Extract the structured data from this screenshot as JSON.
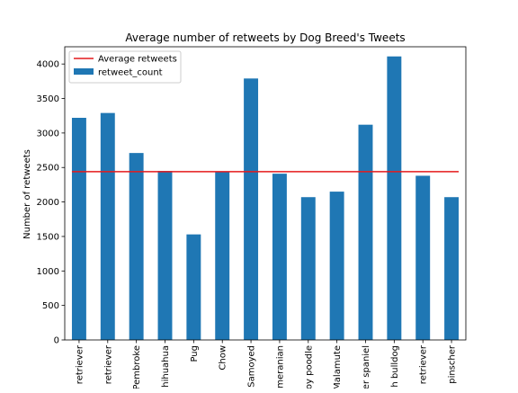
{
  "chart_data": {
    "type": "bar",
    "title": "Average number of retweets by Dog Breed's Tweets",
    "ylabel": "Number of retweets",
    "xlabel": "",
    "categories": [
      "retriever",
      "retriever",
      "Pembroke",
      "Chihuahua",
      "Pug",
      "Chow",
      "Samoyed",
      "Pomeranian",
      "toy poodle",
      "Malamute",
      "cocker spaniel",
      "French bulldog",
      "retriever",
      "pinscher"
    ],
    "category_labels_visible": [
      "retriever",
      "retriever",
      "Pembroke",
      "hihuahua",
      "Pug",
      "Chow",
      "Samoyed",
      "omeranian",
      "oy poodle",
      "Malamute",
      "er spaniel",
      "h bulldog",
      "retriever",
      "pinscher"
    ],
    "series": [
      {
        "name": "retweet_count",
        "type": "bar",
        "color": "#1f77b4",
        "values": [
          3220,
          3290,
          2710,
          2450,
          1530,
          2440,
          3790,
          2410,
          2070,
          2150,
          3120,
          4110,
          2380,
          2070
        ]
      }
    ],
    "average_line": {
      "name": "Average retweets",
      "value": 2440,
      "color": "#e41a1c"
    },
    "ylim": [
      0,
      4250
    ],
    "yticks": [
      0,
      500,
      1000,
      1500,
      2000,
      2500,
      3000,
      3500,
      4000
    ],
    "grid": false,
    "legend": {
      "placement": "top-left",
      "entries": [
        "Average retweets",
        "retweet_count"
      ]
    }
  }
}
